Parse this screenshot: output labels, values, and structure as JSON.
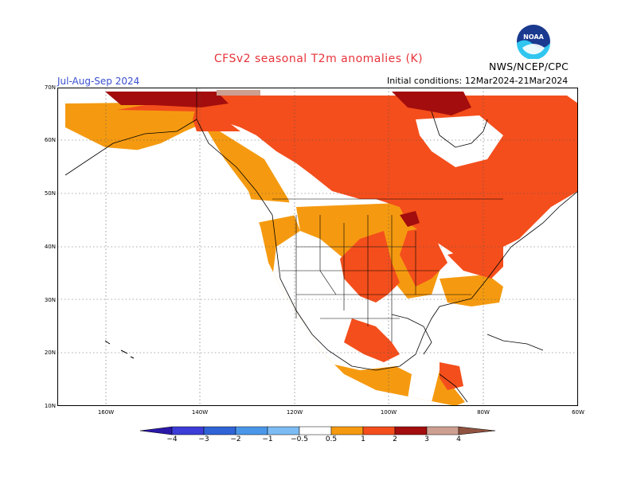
{
  "header": {
    "title": "CFSv2  seasonal  T2m  anomalies  (K)",
    "season": "Jul-Aug-Sep  2024",
    "initial_conditions": "Initial  conditions:  12Mar2024-21Mar2024",
    "agency": "NWS/NCEP/CPC",
    "logo_text": "NOAA"
  },
  "axes": {
    "lat_labels": [
      "70N",
      "60N",
      "50N",
      "40N",
      "30N",
      "20N",
      "10N"
    ],
    "lon_labels": [
      "160W",
      "140W",
      "120W",
      "100W",
      "80W",
      "60W"
    ]
  },
  "legend": {
    "labels": [
      "−4",
      "−3",
      "−2",
      "−1",
      "−0.5",
      "0.5",
      "1",
      "2",
      "3",
      "4"
    ],
    "colors": [
      "#2a18a8",
      "#3c3cd8",
      "#2f63d6",
      "#4a97ea",
      "#7cbcf2",
      "#ffffff",
      "#f59a10",
      "#f44e1c",
      "#a30d0d",
      "#cc9f90",
      "#8f5340"
    ]
  },
  "colors": {
    "anomaly_0_5_1": "#f59a10",
    "anomaly_1_2": "#f44e1c",
    "anomaly_2_3": "#a30d0d",
    "anomaly_3_4": "#cc9f90",
    "title_red": "#e8333a",
    "season_blue": "#3a4fd0"
  }
}
